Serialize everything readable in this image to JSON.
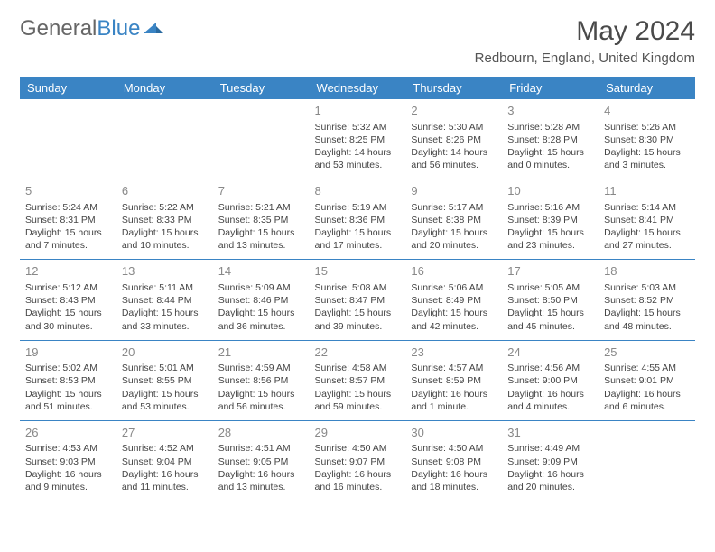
{
  "logo": {
    "text_gray": "General",
    "text_blue": "Blue"
  },
  "header": {
    "month_title": "May 2024",
    "location": "Redbourn, England, United Kingdom"
  },
  "colors": {
    "header_bg": "#3a84c4",
    "header_text": "#ffffff",
    "row_border": "#3a84c4",
    "day_num": "#888888",
    "body_text": "#444444",
    "logo_gray": "#666666",
    "logo_blue": "#3a84c4"
  },
  "day_headers": [
    "Sunday",
    "Monday",
    "Tuesday",
    "Wednesday",
    "Thursday",
    "Friday",
    "Saturday"
  ],
  "weeks": [
    [
      null,
      null,
      null,
      {
        "n": "1",
        "sr": "5:32 AM",
        "ss": "8:25 PM",
        "dl": "14 hours and 53 minutes."
      },
      {
        "n": "2",
        "sr": "5:30 AM",
        "ss": "8:26 PM",
        "dl": "14 hours and 56 minutes."
      },
      {
        "n": "3",
        "sr": "5:28 AM",
        "ss": "8:28 PM",
        "dl": "15 hours and 0 minutes."
      },
      {
        "n": "4",
        "sr": "5:26 AM",
        "ss": "8:30 PM",
        "dl": "15 hours and 3 minutes."
      }
    ],
    [
      {
        "n": "5",
        "sr": "5:24 AM",
        "ss": "8:31 PM",
        "dl": "15 hours and 7 minutes."
      },
      {
        "n": "6",
        "sr": "5:22 AM",
        "ss": "8:33 PM",
        "dl": "15 hours and 10 minutes."
      },
      {
        "n": "7",
        "sr": "5:21 AM",
        "ss": "8:35 PM",
        "dl": "15 hours and 13 minutes."
      },
      {
        "n": "8",
        "sr": "5:19 AM",
        "ss": "8:36 PM",
        "dl": "15 hours and 17 minutes."
      },
      {
        "n": "9",
        "sr": "5:17 AM",
        "ss": "8:38 PM",
        "dl": "15 hours and 20 minutes."
      },
      {
        "n": "10",
        "sr": "5:16 AM",
        "ss": "8:39 PM",
        "dl": "15 hours and 23 minutes."
      },
      {
        "n": "11",
        "sr": "5:14 AM",
        "ss": "8:41 PM",
        "dl": "15 hours and 27 minutes."
      }
    ],
    [
      {
        "n": "12",
        "sr": "5:12 AM",
        "ss": "8:43 PM",
        "dl": "15 hours and 30 minutes."
      },
      {
        "n": "13",
        "sr": "5:11 AM",
        "ss": "8:44 PM",
        "dl": "15 hours and 33 minutes."
      },
      {
        "n": "14",
        "sr": "5:09 AM",
        "ss": "8:46 PM",
        "dl": "15 hours and 36 minutes."
      },
      {
        "n": "15",
        "sr": "5:08 AM",
        "ss": "8:47 PM",
        "dl": "15 hours and 39 minutes."
      },
      {
        "n": "16",
        "sr": "5:06 AM",
        "ss": "8:49 PM",
        "dl": "15 hours and 42 minutes."
      },
      {
        "n": "17",
        "sr": "5:05 AM",
        "ss": "8:50 PM",
        "dl": "15 hours and 45 minutes."
      },
      {
        "n": "18",
        "sr": "5:03 AM",
        "ss": "8:52 PM",
        "dl": "15 hours and 48 minutes."
      }
    ],
    [
      {
        "n": "19",
        "sr": "5:02 AM",
        "ss": "8:53 PM",
        "dl": "15 hours and 51 minutes."
      },
      {
        "n": "20",
        "sr": "5:01 AM",
        "ss": "8:55 PM",
        "dl": "15 hours and 53 minutes."
      },
      {
        "n": "21",
        "sr": "4:59 AM",
        "ss": "8:56 PM",
        "dl": "15 hours and 56 minutes."
      },
      {
        "n": "22",
        "sr": "4:58 AM",
        "ss": "8:57 PM",
        "dl": "15 hours and 59 minutes."
      },
      {
        "n": "23",
        "sr": "4:57 AM",
        "ss": "8:59 PM",
        "dl": "16 hours and 1 minute."
      },
      {
        "n": "24",
        "sr": "4:56 AM",
        "ss": "9:00 PM",
        "dl": "16 hours and 4 minutes."
      },
      {
        "n": "25",
        "sr": "4:55 AM",
        "ss": "9:01 PM",
        "dl": "16 hours and 6 minutes."
      }
    ],
    [
      {
        "n": "26",
        "sr": "4:53 AM",
        "ss": "9:03 PM",
        "dl": "16 hours and 9 minutes."
      },
      {
        "n": "27",
        "sr": "4:52 AM",
        "ss": "9:04 PM",
        "dl": "16 hours and 11 minutes."
      },
      {
        "n": "28",
        "sr": "4:51 AM",
        "ss": "9:05 PM",
        "dl": "16 hours and 13 minutes."
      },
      {
        "n": "29",
        "sr": "4:50 AM",
        "ss": "9:07 PM",
        "dl": "16 hours and 16 minutes."
      },
      {
        "n": "30",
        "sr": "4:50 AM",
        "ss": "9:08 PM",
        "dl": "16 hours and 18 minutes."
      },
      {
        "n": "31",
        "sr": "4:49 AM",
        "ss": "9:09 PM",
        "dl": "16 hours and 20 minutes."
      },
      null
    ]
  ],
  "labels": {
    "sunrise": "Sunrise:",
    "sunset": "Sunset:",
    "daylight": "Daylight:"
  }
}
